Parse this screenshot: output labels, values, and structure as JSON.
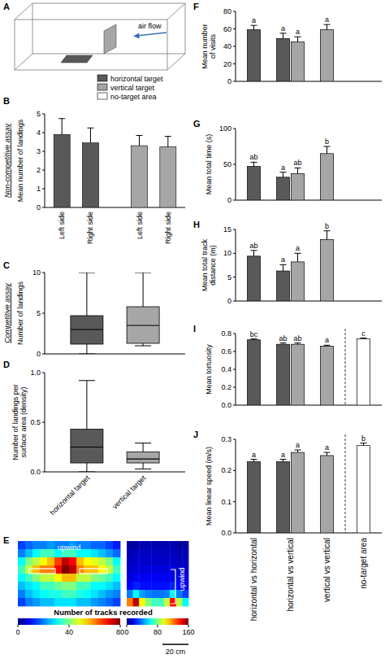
{
  "chart_data": [
    {
      "panel": "A",
      "type": "diagram",
      "annotations": [
        "air flow"
      ],
      "series": [
        {
          "name": "horizontal target",
          "color": "#595959"
        },
        {
          "name": "vertical target",
          "color": "#a6a6a6"
        },
        {
          "name": "no-target area",
          "color": "#ffffff"
        }
      ]
    },
    {
      "panel": "B",
      "type": "bar",
      "group_label": "Non-competitive assay",
      "y_label": "Mean number of landings",
      "categories": [
        "Left side",
        "Right side",
        "Left side",
        "Right side"
      ],
      "values": [
        3.9,
        3.45,
        3.3,
        3.25
      ],
      "errors": [
        0.85,
        0.8,
        0.55,
        0.55
      ],
      "colors": [
        "#595959",
        "#595959",
        "#a6a6a6",
        "#a6a6a6"
      ],
      "ylim": [
        0,
        5
      ],
      "yticks": [
        0,
        1,
        2,
        3,
        4,
        5
      ]
    },
    {
      "panel": "C",
      "type": "box",
      "group_label": "Competitive assay",
      "y_label": "Number of landings",
      "boxes": [
        {
          "min": 0,
          "q1": 1.2,
          "median": 3,
          "q3": 4.7,
          "max": 10,
          "color": "#595959"
        },
        {
          "min": 1,
          "q1": 1.3,
          "median": 3.5,
          "q3": 5.8,
          "max": 10,
          "color": "#a6a6a6"
        }
      ],
      "ylim": [
        0,
        10
      ],
      "yticks": [
        0,
        5,
        10
      ],
      "tick_labels": "y"
    },
    {
      "panel": "D",
      "type": "box",
      "y_label": "Number of landings per surface area (density)",
      "categories": [
        "horizontal target",
        "vertical target"
      ],
      "boxes": [
        {
          "min": 0,
          "q1": 0.09,
          "median": 0.25,
          "q3": 0.43,
          "max": 0.92,
          "color": "#595959"
        },
        {
          "min": 0.03,
          "q1": 0.09,
          "median": 0.13,
          "q3": 0.2,
          "max": 0.29,
          "color": "#a6a6a6"
        }
      ],
      "ylim": [
        0,
        1
      ],
      "yticks": [
        {
          "value": 0,
          "label": "0.0"
        },
        0.5,
        {
          "value": 1,
          "label": "1.0"
        }
      ]
    },
    {
      "panel": "E",
      "type": "heatmap",
      "annotations": [
        "upwind"
      ],
      "colorbar_label": "Number of tracks recorded",
      "cells": [
        [
          15,
          18,
          20,
          20,
          22,
          20,
          20,
          22,
          20,
          20,
          18,
          18,
          15,
          12
        ],
        [
          20,
          25,
          30,
          35,
          35,
          30,
          35,
          35,
          30,
          30,
          28,
          25,
          22,
          18
        ],
        [
          30,
          40,
          45,
          50,
          55,
          65,
          75,
          70,
          55,
          50,
          48,
          45,
          40,
          30
        ],
        [
          35,
          45,
          55,
          60,
          60,
          70,
          80,
          75,
          60,
          55,
          55,
          50,
          45,
          35
        ],
        [
          30,
          35,
          40,
          45,
          45,
          50,
          55,
          55,
          45,
          45,
          40,
          38,
          35,
          30
        ],
        [
          25,
          28,
          30,
          35,
          35,
          38,
          40,
          40,
          35,
          35,
          30,
          30,
          28,
          25
        ],
        [
          20,
          25,
          28,
          30,
          32,
          32,
          35,
          35,
          32,
          30,
          28,
          25,
          22,
          20
        ],
        [
          15,
          20,
          22,
          25,
          25,
          28,
          28,
          28,
          25,
          25,
          22,
          20,
          18,
          15
        ]
      ],
      "colorbar": {
        "range": [
          0,
          80
        ],
        "ticks": [
          0,
          40,
          80
        ]
      }
    },
    {
      "type": "heatmap",
      "annotations": [
        "upwind"
      ],
      "scale_bar": "20 cm",
      "cells": [
        [
          5,
          5,
          8,
          8,
          8,
          8,
          8,
          8,
          5,
          5
        ],
        [
          8,
          10,
          10,
          10,
          10,
          10,
          10,
          10,
          8,
          8
        ],
        [
          10,
          12,
          12,
          12,
          12,
          12,
          12,
          12,
          10,
          10
        ],
        [
          12,
          14,
          14,
          15,
          15,
          15,
          15,
          15,
          12,
          12
        ],
        [
          15,
          18,
          18,
          18,
          18,
          18,
          18,
          18,
          15,
          15
        ],
        [
          20,
          25,
          22,
          22,
          22,
          22,
          22,
          25,
          20,
          18
        ],
        [
          40,
          60,
          45,
          40,
          38,
          38,
          40,
          60,
          40,
          30
        ],
        [
          120,
          150,
          100,
          80,
          70,
          70,
          90,
          140,
          90,
          60
        ]
      ],
      "colorbar": {
        "range": [
          0,
          160
        ],
        "ticks": [
          0,
          80,
          160
        ]
      }
    },
    {
      "panel": "F",
      "type": "bar",
      "y_label": "Mean number of visits",
      "tick_labels": "y",
      "series": [
        {
          "color": "#595959",
          "values": [
            59,
            49,
            null,
            null
          ],
          "errors": [
            5,
            6,
            null,
            null
          ],
          "letters": [
            "a",
            "a",
            null,
            null
          ]
        },
        {
          "color": "#a6a6a6",
          "values": [
            null,
            45,
            59,
            null
          ],
          "errors": [
            null,
            6,
            6,
            null
          ],
          "letters": [
            null,
            "a",
            "a",
            null
          ]
        }
      ],
      "ylim": [
        0,
        80
      ],
      "yticks": [
        0,
        20,
        40,
        60,
        80
      ]
    },
    {
      "panel": "G",
      "type": "bar",
      "y_label": "Mean total time (s)",
      "tick_labels": "y",
      "series": [
        {
          "color": "#595959",
          "values": [
            47,
            32,
            null,
            null
          ],
          "errors": [
            6,
            7,
            null,
            null
          ],
          "letters": [
            "ab",
            "a",
            null,
            null
          ]
        },
        {
          "color": "#a6a6a6",
          "values": [
            null,
            37,
            65,
            null
          ],
          "errors": [
            null,
            8,
            10,
            null
          ],
          "letters": [
            null,
            "ab",
            "b",
            null
          ]
        }
      ],
      "ylim": [
        0,
        100
      ],
      "yticks": [
        0,
        50,
        100
      ]
    },
    {
      "panel": "H",
      "type": "bar",
      "y_label": "Mean total track distance (m)",
      "tick_labels": "y",
      "series": [
        {
          "color": "#595959",
          "values": [
            9.4,
            6.3,
            null,
            null
          ],
          "errors": [
            1.2,
            1.3,
            null,
            null
          ],
          "letters": [
            "ab",
            "a",
            null,
            null
          ]
        },
        {
          "color": "#a6a6a6",
          "values": [
            null,
            8.2,
            12.9,
            null
          ],
          "errors": [
            null,
            1.8,
            1.8,
            null
          ],
          "letters": [
            null,
            "a",
            "b",
            null
          ]
        }
      ],
      "ylim": [
        0,
        15
      ],
      "yticks": [
        0,
        5,
        10,
        15
      ]
    },
    {
      "panel": "I",
      "type": "bar",
      "y_label": "Mean tortuosity",
      "tick_labels": "y",
      "series": [
        {
          "color": "#595959",
          "values": [
            0.73,
            0.68,
            null,
            null
          ],
          "errors": [
            0.01,
            0.015,
            null,
            null
          ],
          "letters": [
            "bc",
            "ab",
            null,
            null
          ]
        },
        {
          "color": "#a6a6a6",
          "values": [
            null,
            0.68,
            0.66,
            null
          ],
          "errors": [
            null,
            0.015,
            0.01,
            null
          ],
          "letters": [
            null,
            "ab",
            "a",
            null
          ]
        },
        {
          "color": "#ffffff",
          "values": [
            null,
            null,
            null,
            0.74
          ],
          "errors": [
            null,
            null,
            null,
            0.01
          ],
          "letters": [
            null,
            null,
            null,
            "c"
          ]
        }
      ],
      "ylim": [
        0,
        0.8
      ],
      "yticks": [
        {
          "value": 0,
          "label": "0.0"
        },
        0.2,
        0.4,
        0.6,
        0.8
      ]
    },
    {
      "panel": "J",
      "type": "bar",
      "y_label": "Mean linear speed (m/s)",
      "categories": [
        "horizontal vs horizontal",
        "horizontal vs vertical",
        "vertical vs vertical",
        "no-target area"
      ],
      "series": [
        {
          "color": "#595959",
          "values": [
            0.228,
            0.228,
            null,
            null
          ],
          "errors": [
            0.008,
            0.008,
            null,
            null
          ],
          "letters": [
            "a",
            "a",
            null,
            null
          ]
        },
        {
          "color": "#a6a6a6",
          "values": [
            null,
            0.258,
            0.248,
            null
          ],
          "errors": [
            null,
            0.008,
            0.01,
            null
          ],
          "letters": [
            null,
            "a",
            "a",
            null
          ]
        },
        {
          "color": "#ffffff",
          "values": [
            null,
            null,
            null,
            0.28
          ],
          "errors": [
            null,
            null,
            null,
            0.008
          ],
          "letters": [
            null,
            null,
            null,
            "b"
          ]
        }
      ],
      "ylim": [
        0,
        0.3
      ],
      "yticks": [
        {
          "value": 0,
          "label": "0.0"
        },
        0.1,
        0.2,
        0.3
      ]
    }
  ]
}
